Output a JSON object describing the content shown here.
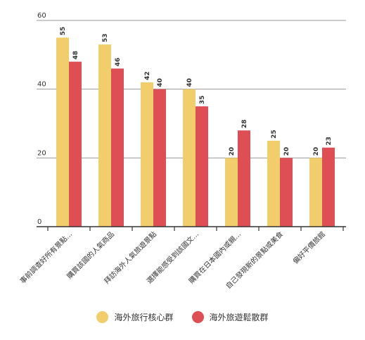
{
  "chart_data": {
    "type": "bar",
    "categories": [
      "事前調查好所有景點...",
      "購買該國的人氣商品",
      "拜訪海外人氣旅遊景點",
      "選擇能感受到該國文...",
      "購買在日本國內或親...",
      "自己發現新的景點或美食",
      "偏好平價旅館"
    ],
    "series": [
      {
        "name": "海外旅行核心群",
        "color": "#f1cd6b",
        "values": [
          55,
          53,
          42,
          40,
          20,
          25,
          20
        ]
      },
      {
        "name": "海外旅遊鬆散群",
        "color": "#dd4f55",
        "values": [
          48,
          46,
          40,
          35,
          28,
          20,
          23
        ]
      }
    ],
    "ylim": [
      0,
      60
    ],
    "yticks": [
      0,
      20,
      40,
      60
    ],
    "title": "",
    "xlabel": "",
    "ylabel": "",
    "grid": true,
    "legend_position": "bottom"
  }
}
